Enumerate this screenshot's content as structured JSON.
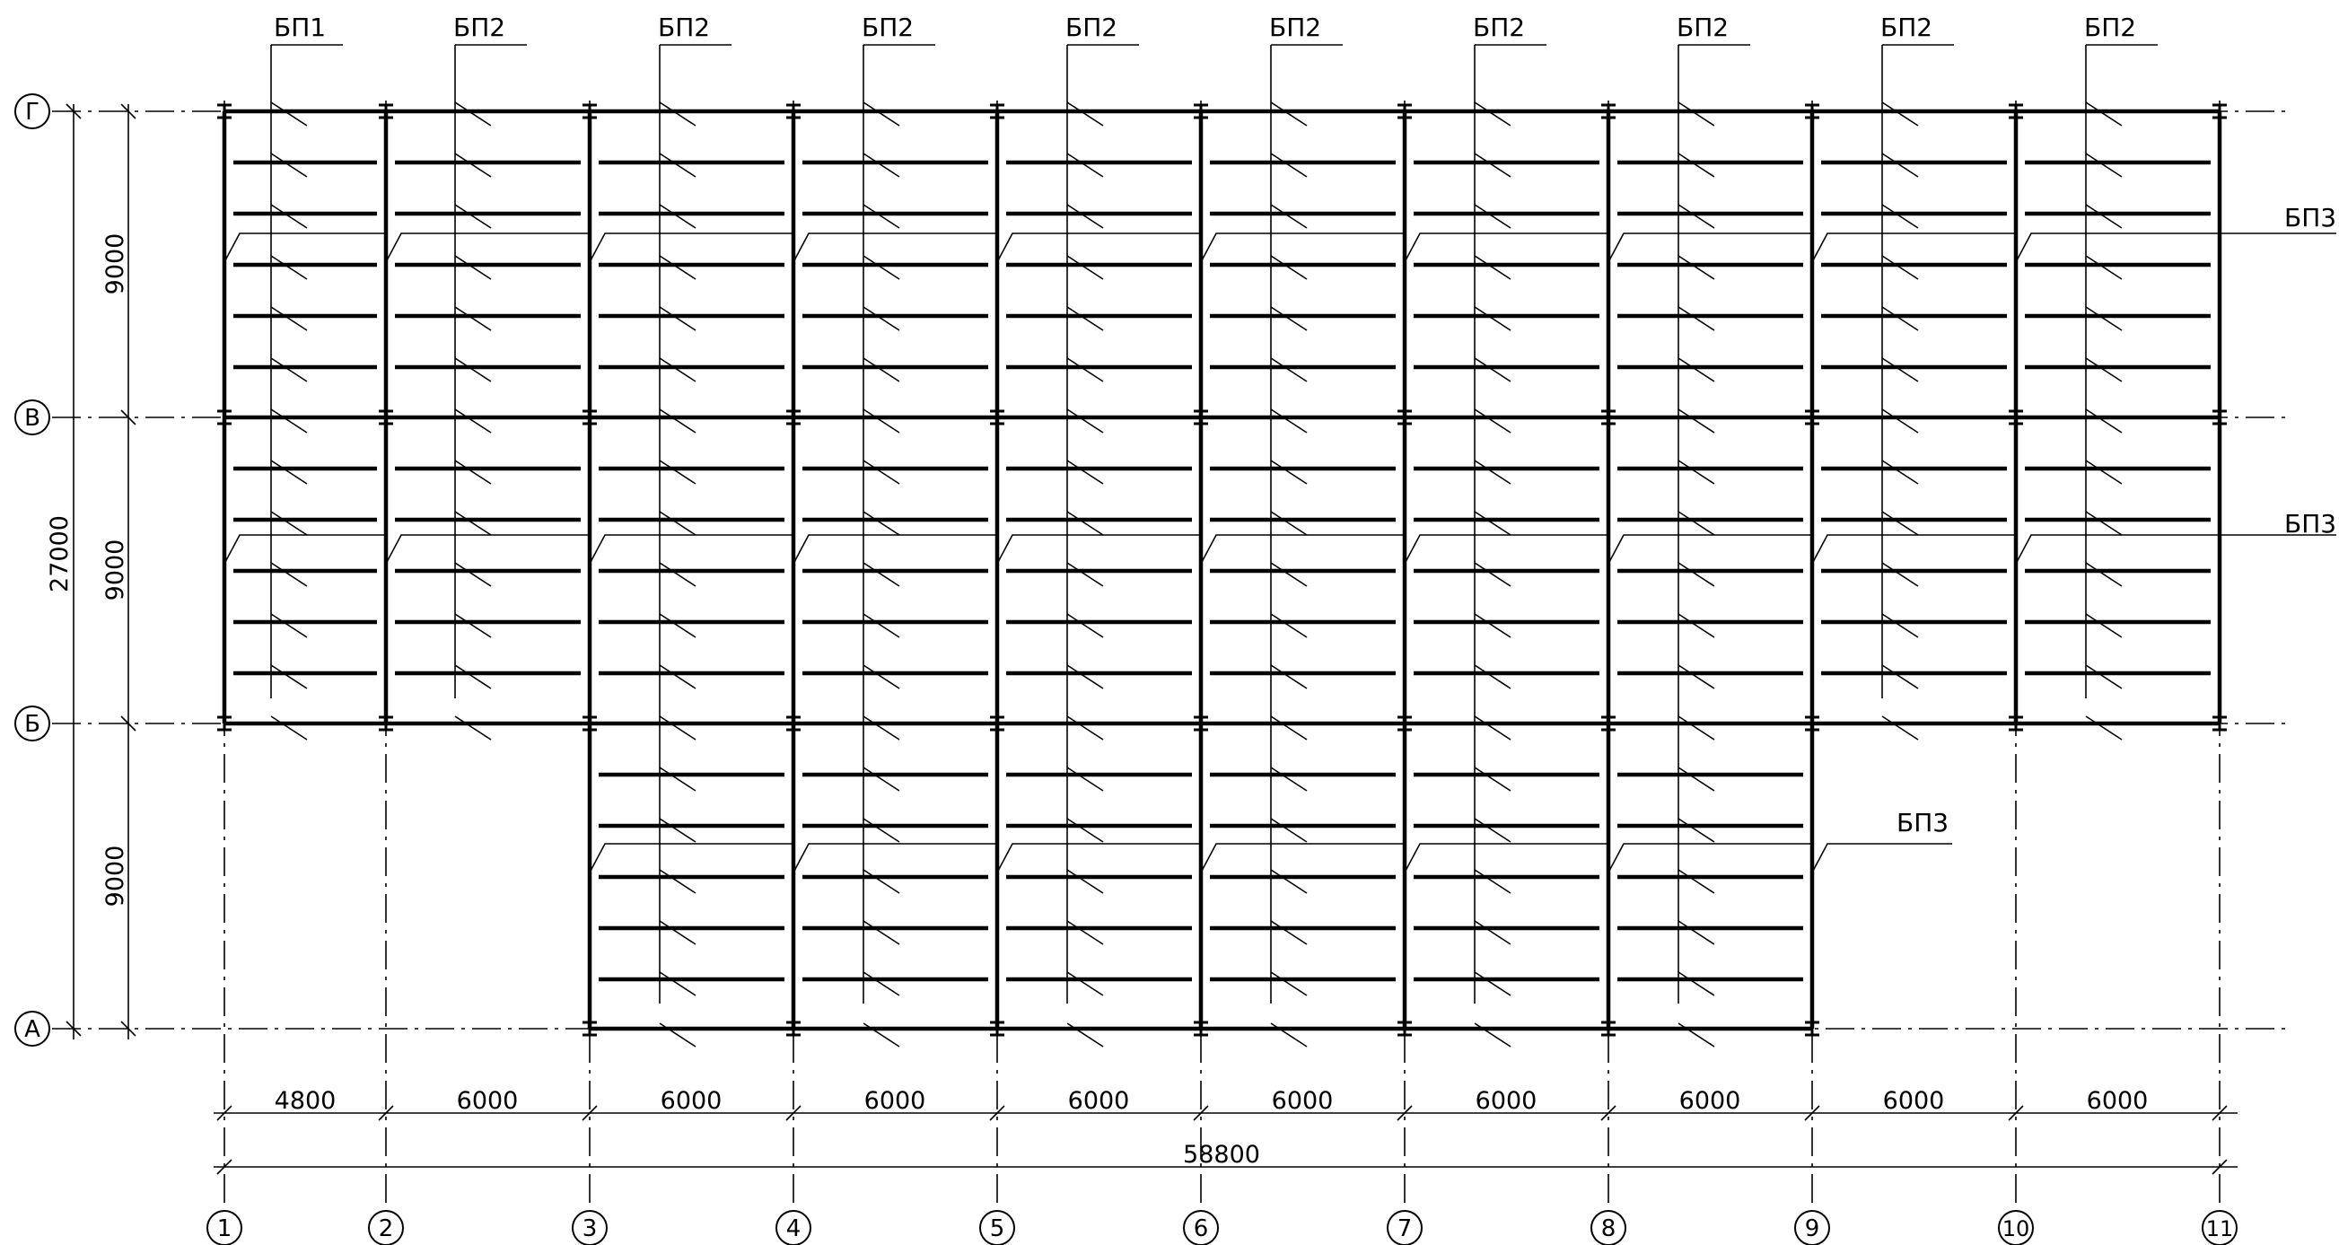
{
  "grid": {
    "columns": [
      "1",
      "2",
      "3",
      "4",
      "5",
      "6",
      "7",
      "8",
      "9",
      "10",
      "11"
    ],
    "rows": [
      "Г",
      "В",
      "Б",
      "А"
    ]
  },
  "beam_labels": {
    "top": [
      "БП1",
      "БП2",
      "БП2",
      "БП2",
      "БП2",
      "БП2",
      "БП2",
      "БП2",
      "БП2",
      "БП2"
    ],
    "bp3": [
      "БП3",
      "БП3",
      "БП3"
    ]
  },
  "dimensions": {
    "spans_x": [
      "4800",
      "6000",
      "6000",
      "6000",
      "6000",
      "6000",
      "6000",
      "6000",
      "6000",
      "6000"
    ],
    "total_x": "58800",
    "spans_y": [
      "9000",
      "9000",
      "9000"
    ],
    "total_y": "27000"
  },
  "colors": {
    "line": "#000000",
    "background": "#ffffff"
  }
}
